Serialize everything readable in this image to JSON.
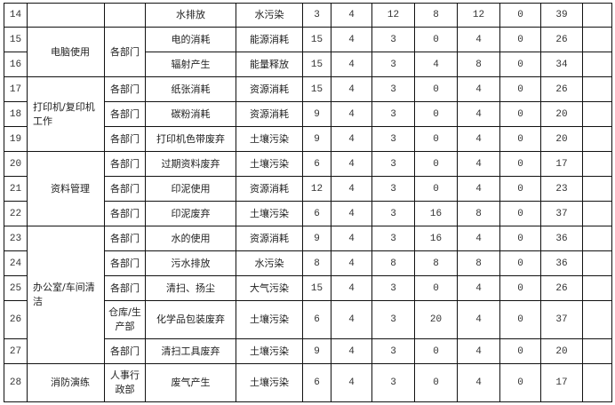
{
  "rows": [
    {
      "no": "14",
      "activity": "",
      "dept": "",
      "aspect": "水排放",
      "impact": "水污染",
      "scores": [
        "3",
        "4",
        "12",
        "8",
        "12",
        "0",
        "39"
      ],
      "remark": ""
    },
    {
      "no": "15",
      "activity": "电脑使用",
      "dept": "各部门",
      "aspect": "电的消耗",
      "impact": "能源消耗",
      "scores": [
        "15",
        "4",
        "3",
        "0",
        "4",
        "0",
        "26"
      ],
      "remark": ""
    },
    {
      "no": "16",
      "activity": "",
      "dept": "",
      "aspect": "辐射产生",
      "impact": "能量释放",
      "scores": [
        "15",
        "4",
        "3",
        "4",
        "8",
        "0",
        "34"
      ],
      "remark": ""
    },
    {
      "no": "17",
      "activity": "打印机/复印机工作",
      "dept": "各部门",
      "aspect": "纸张消耗",
      "impact": "资源消耗",
      "scores": [
        "15",
        "4",
        "3",
        "0",
        "4",
        "0",
        "26"
      ],
      "remark": ""
    },
    {
      "no": "18",
      "activity": "",
      "dept": "各部门",
      "aspect": "碳粉消耗",
      "impact": "资源消耗",
      "scores": [
        "9",
        "4",
        "3",
        "0",
        "4",
        "0",
        "20"
      ],
      "remark": ""
    },
    {
      "no": "19",
      "activity": "",
      "dept": "各部门",
      "aspect": "打印机色带废弃",
      "impact": "土壤污染",
      "scores": [
        "9",
        "4",
        "3",
        "0",
        "4",
        "0",
        "20"
      ],
      "remark": ""
    },
    {
      "no": "20",
      "activity": "资料管理",
      "dept": "各部门",
      "aspect": "过期资料废弃",
      "impact": "土壤污染",
      "scores": [
        "6",
        "4",
        "3",
        "0",
        "4",
        "0",
        "17"
      ],
      "remark": ""
    },
    {
      "no": "21",
      "activity": "",
      "dept": "各部门",
      "aspect": "印泥使用",
      "impact": "资源消耗",
      "scores": [
        "12",
        "4",
        "3",
        "0",
        "4",
        "0",
        "23"
      ],
      "remark": ""
    },
    {
      "no": "22",
      "activity": "",
      "dept": "各部门",
      "aspect": "印泥废弃",
      "impact": "土壤污染",
      "scores": [
        "6",
        "4",
        "3",
        "16",
        "8",
        "0",
        "37"
      ],
      "remark": ""
    },
    {
      "no": "23",
      "activity": "办公室/车间清洁",
      "dept": "各部门",
      "aspect": "水的使用",
      "impact": "资源消耗",
      "scores": [
        "9",
        "4",
        "3",
        "16",
        "4",
        "0",
        "36"
      ],
      "remark": ""
    },
    {
      "no": "24",
      "activity": "",
      "dept": "各部门",
      "aspect": "污水排放",
      "impact": "水污染",
      "scores": [
        "8",
        "4",
        "8",
        "8",
        "8",
        "0",
        "36"
      ],
      "remark": ""
    },
    {
      "no": "25",
      "activity": "",
      "dept": "各部门",
      "aspect": "清扫、扬尘",
      "impact": "大气污染",
      "scores": [
        "15",
        "4",
        "3",
        "0",
        "4",
        "0",
        "26"
      ],
      "remark": ""
    },
    {
      "no": "26",
      "activity": "",
      "dept": "仓库/生产部",
      "aspect": "化学品包装废弃",
      "impact": "土壤污染",
      "scores": [
        "6",
        "4",
        "3",
        "20",
        "4",
        "0",
        "37"
      ],
      "remark": ""
    },
    {
      "no": "27",
      "activity": "",
      "dept": "各部门",
      "aspect": "清扫工具废弃",
      "impact": "土壤污染",
      "scores": [
        "9",
        "4",
        "3",
        "0",
        "4",
        "0",
        "20"
      ],
      "remark": ""
    },
    {
      "no": "28",
      "activity": "消防演练",
      "dept": "人事行政部",
      "aspect": "废气产生",
      "impact": "土壤污染",
      "scores": [
        "6",
        "4",
        "3",
        "0",
        "4",
        "0",
        "17"
      ],
      "remark": ""
    }
  ]
}
